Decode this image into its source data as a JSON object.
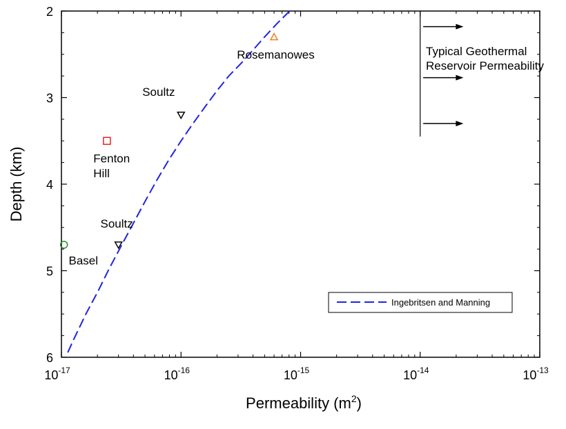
{
  "chart_data": {
    "type": "scatter",
    "xscale": "log",
    "yaxis_inverted": true,
    "xlim": [
      1e-17,
      1e-13
    ],
    "ylim": [
      2,
      6
    ],
    "grid": false,
    "xlabel": "Permeability (m",
    "xlabel_sup": "2",
    "xlabel_close": ")",
    "ylabel": "Depth (km)",
    "x_ticks": [
      {
        "value": 1e-17,
        "base": "10",
        "exp": "-17"
      },
      {
        "value": 1e-16,
        "base": "10",
        "exp": "-16"
      },
      {
        "value": 1e-15,
        "base": "10",
        "exp": "-15"
      },
      {
        "value": 1e-14,
        "base": "10",
        "exp": "-14"
      },
      {
        "value": 1e-13,
        "base": "10",
        "exp": "-13"
      }
    ],
    "y_ticks": [
      2,
      3,
      4,
      5,
      6
    ],
    "points": [
      {
        "x": 6e-16,
        "y": 2.3,
        "marker": "triangle-up",
        "color": "#f07c22"
      },
      {
        "x": 1e-16,
        "y": 3.2,
        "marker": "triangle-down",
        "color": "#000000"
      },
      {
        "x": 2.4e-17,
        "y": 3.5,
        "marker": "square",
        "color": "#e8231f"
      },
      {
        "x": 3e-17,
        "y": 4.7,
        "marker": "triangle-down",
        "color": "#000000"
      },
      {
        "x": 1.05e-17,
        "y": 4.7,
        "marker": "circle",
        "color": "#2a8a2a"
      }
    ],
    "annotations": [
      {
        "text": "Rosemanowes",
        "x": 6.2e-16,
        "y": 2.55,
        "anchor": "middle"
      },
      {
        "text": "Soultz",
        "x": 6.5e-17,
        "y": 2.98,
        "anchor": "middle"
      },
      {
        "text": "Fenton",
        "x": 1.85e-17,
        "y": 3.75,
        "anchor": "start"
      },
      {
        "text": "Hill",
        "x": 1.85e-17,
        "y": 3.92,
        "anchor": "start"
      },
      {
        "text": "Soultz",
        "x": 2.9e-17,
        "y": 4.5,
        "anchor": "middle"
      },
      {
        "text": "Basel",
        "x": 1.15e-17,
        "y": 4.93,
        "anchor": "start"
      }
    ],
    "reservoir_box": {
      "line_x": 1e-14,
      "line_y": [
        2,
        3.45
      ],
      "arrows": [
        {
          "y": 2.18,
          "x_from": 1.06e-14,
          "x_to": 2.3e-14
        },
        {
          "y": 2.77,
          "x_from": 1.06e-14,
          "x_to": 2.3e-14
        },
        {
          "y": 3.3,
          "x_from": 1.06e-14,
          "x_to": 2.3e-14
        }
      ],
      "label_lines": [
        "Typical Geothermal",
        "Reservoir Permeability"
      ]
    },
    "series": [
      {
        "name": "Ingebritsen and Manning",
        "style": "dashed",
        "color": "#1f23e0",
        "x": [
          8.1e-16,
          6.3e-16,
          5e-16,
          4e-16,
          3.2e-16,
          2.51e-16,
          2e-16,
          1.6e-16,
          1.26e-16,
          1e-16,
          7.9e-17,
          6.3e-17,
          5e-17,
          4e-17,
          3.2e-17,
          2.5e-17,
          2e-17,
          1.6e-17,
          1.26e-17,
          1.1e-17
        ],
        "y": [
          2.0,
          2.15,
          2.3,
          2.45,
          2.6,
          2.75,
          2.92,
          3.1,
          3.3,
          3.5,
          3.72,
          3.95,
          4.2,
          4.45,
          4.7,
          4.98,
          5.25,
          5.5,
          5.8,
          5.98
        ]
      }
    ],
    "legend": {
      "placement": "bottom-right"
    }
  }
}
